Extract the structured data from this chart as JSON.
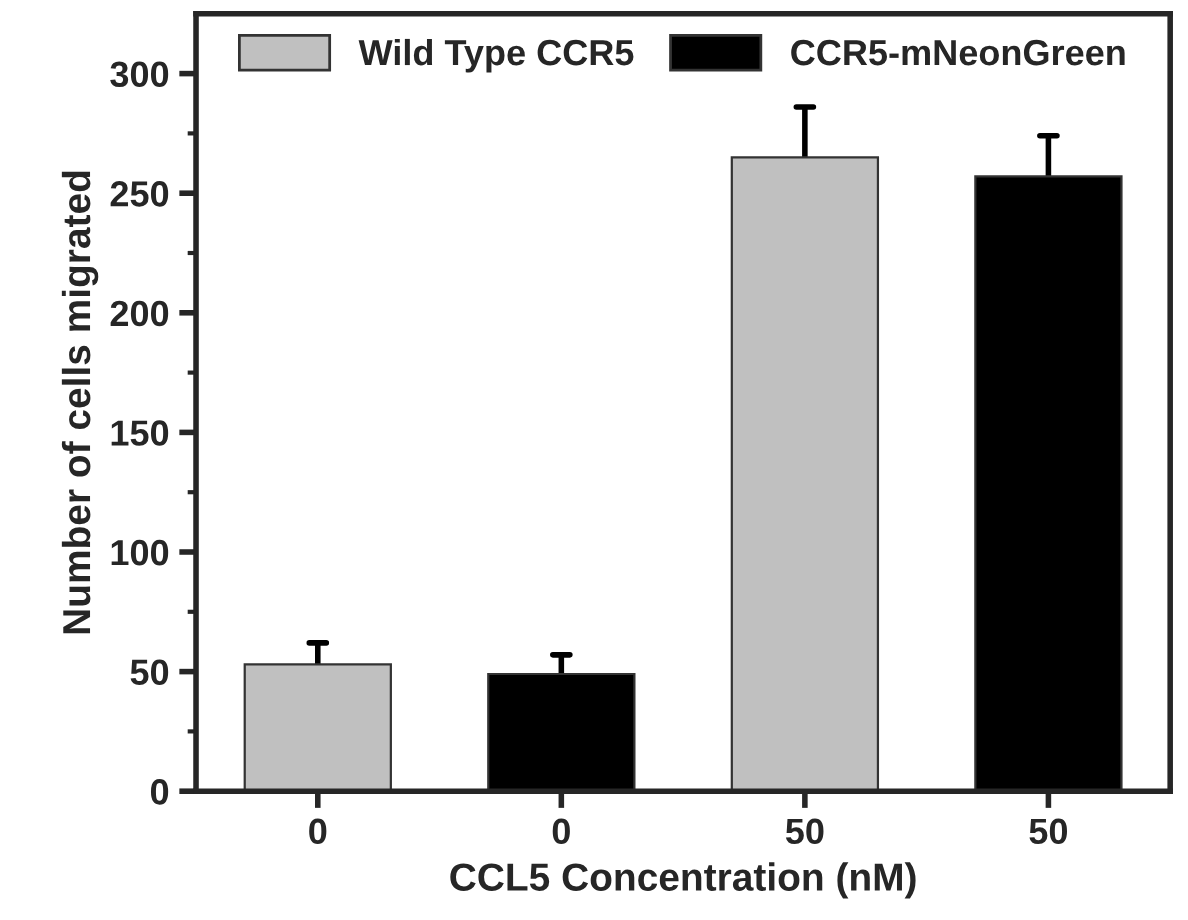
{
  "chart_data": {
    "type": "bar",
    "xlabel": "CCL5 Concentration (nM)",
    "ylabel": "Number of cells migrated",
    "categories": [
      "0",
      "0",
      "50",
      "50"
    ],
    "series": [
      {
        "name": "Wild Type CCR5",
        "color": "#c0c0c0",
        "values": [
          53,
          null,
          265,
          null
        ],
        "errors": [
          [
            53,
            62
          ],
          null,
          [
            265,
            286
          ],
          null
        ]
      },
      {
        "name": "CCR5-mNeonGreen",
        "color": "#000000",
        "values": [
          null,
          49,
          null,
          257
        ],
        "errors": [
          null,
          [
            49,
            57
          ],
          null,
          [
            257,
            274
          ]
        ]
      }
    ],
    "ylim": [
      0,
      325
    ],
    "yticks": [
      0,
      {
        "value": 25,
        "label": null
      },
      50,
      {
        "value": 75,
        "label": null
      },
      100,
      {
        "value": 125,
        "label": null
      },
      150,
      {
        "value": 175,
        "label": null
      },
      200,
      {
        "value": 225,
        "label": null
      },
      250,
      {
        "value": 275,
        "label": null
      },
      300
    ],
    "legend": "top",
    "grid": false
  }
}
